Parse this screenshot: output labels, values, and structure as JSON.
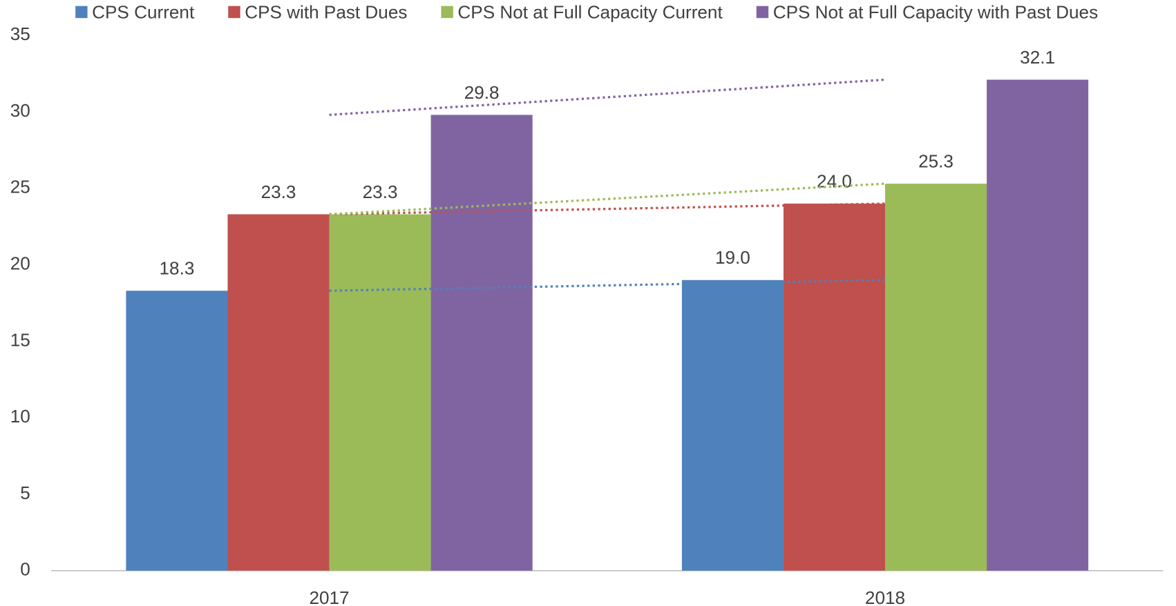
{
  "chart_data": {
    "type": "bar",
    "categories": [
      "2017",
      "2018"
    ],
    "series": [
      {
        "name": "CPS Current",
        "color": "#4f81bd",
        "values": [
          18.3,
          19.0
        ],
        "value_labels": [
          "18.3",
          "19.0"
        ]
      },
      {
        "name": "CPS with Past Dues",
        "color": "#c0504d",
        "values": [
          23.3,
          24.0
        ],
        "value_labels": [
          "23.3",
          "24.0"
        ]
      },
      {
        "name": "CPS Not at Full Capacity Current",
        "color": "#9bbb59",
        "values": [
          23.3,
          25.3
        ],
        "value_labels": [
          "23.3",
          "25.3"
        ]
      },
      {
        "name": "CPS Not at Full Capacity with Past Dues",
        "color": "#8064a2",
        "values": [
          29.8,
          32.1
        ],
        "value_labels": [
          "29.8",
          "32.1"
        ]
      }
    ],
    "ylim": [
      0,
      35
    ],
    "yticks": [
      0,
      5,
      10,
      15,
      20,
      25,
      30,
      35
    ],
    "trendline": true,
    "legend": "top",
    "grid": false
  }
}
